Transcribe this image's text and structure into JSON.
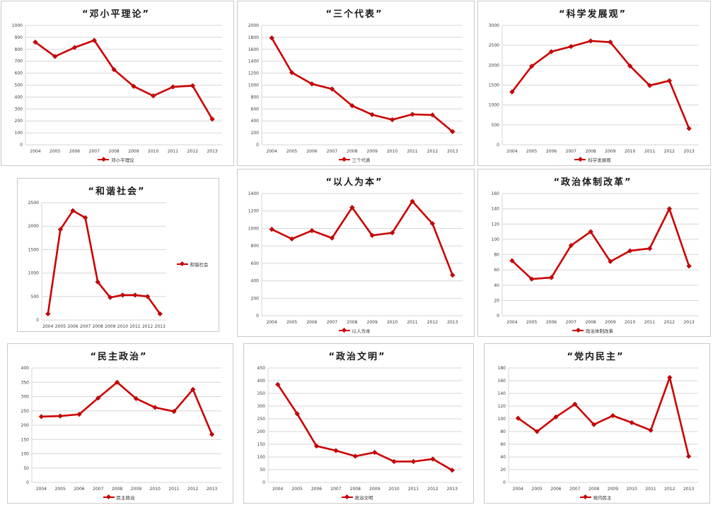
{
  "colors": {
    "line": "#cc0000",
    "grid": "#d6d6d6",
    "axis_text": "#3c3c3c",
    "panel_border": "#c9c9c9"
  },
  "chart_data": [
    {
      "type": "line",
      "title": "“邓小平理论”",
      "legend": "邓小平理论",
      "categories": [
        "2004",
        "2005",
        "2006",
        "2007",
        "2008",
        "2009",
        "2010",
        "2011",
        "2012",
        "2013"
      ],
      "values": [
        860,
        740,
        815,
        875,
        630,
        490,
        410,
        485,
        495,
        215
      ],
      "ylim": [
        0,
        1000
      ],
      "ystep": 100,
      "grid": true,
      "legend_position": "bottom"
    },
    {
      "type": "line",
      "title": "“三个代表”",
      "legend": "三个代表",
      "categories": [
        "2004",
        "2005",
        "2006",
        "2007",
        "2008",
        "2009",
        "2010",
        "2011",
        "2012",
        "2013"
      ],
      "values": [
        1790,
        1210,
        1020,
        935,
        655,
        505,
        420,
        510,
        500,
        220
      ],
      "ylim": [
        0,
        2000
      ],
      "ystep": 200,
      "grid": true,
      "legend_position": "bottom"
    },
    {
      "type": "line",
      "title": "“科学发展观”",
      "legend": "科学发展观",
      "categories": [
        "2004",
        "2005",
        "2006",
        "2007",
        "2008",
        "2009",
        "2010",
        "2011",
        "2012",
        "2013"
      ],
      "values": [
        1330,
        1975,
        2340,
        2470,
        2610,
        2580,
        1980,
        1490,
        1610,
        410
      ],
      "ylim": [
        0,
        3000
      ],
      "ystep": 500,
      "grid": true,
      "legend_position": "bottom"
    },
    {
      "type": "line",
      "title": "“和谐社会”",
      "legend": "和谐社会",
      "categories": [
        "2004",
        "2005",
        "2006",
        "2007",
        "2008",
        "2009",
        "2010",
        "2011",
        "2012",
        "2013"
      ],
      "values": [
        130,
        1930,
        2330,
        2180,
        810,
        480,
        530,
        530,
        500,
        130
      ],
      "ylim": [
        0,
        2500
      ],
      "ystep": 500,
      "grid": true,
      "legend_position": "right"
    },
    {
      "type": "line",
      "title": "“以人为本”",
      "legend": "以人为本",
      "categories": [
        "2004",
        "2005",
        "2006",
        "2007",
        "2008",
        "2009",
        "2010",
        "2011",
        "2012",
        "2013"
      ],
      "values": [
        990,
        880,
        975,
        890,
        1240,
        920,
        950,
        1310,
        1055,
        465
      ],
      "ylim": [
        0,
        1400
      ],
      "ystep": 200,
      "grid": true,
      "legend_position": "bottom"
    },
    {
      "type": "line",
      "title": "“政治体制改革”",
      "legend": "政治体制改革",
      "categories": [
        "2004",
        "2005",
        "2006",
        "2007",
        "2008",
        "2009",
        "2010",
        "2011",
        "2012",
        "2013"
      ],
      "values": [
        72,
        48,
        50,
        92,
        110,
        71,
        85,
        88,
        140,
        65
      ],
      "ylim": [
        0,
        160
      ],
      "ystep": 20,
      "grid": true,
      "legend_position": "bottom"
    },
    {
      "type": "line",
      "title": "“民主政治”",
      "legend": "民主政治",
      "categories": [
        "2004",
        "2005",
        "2006",
        "2007",
        "2008",
        "2009",
        "2010",
        "2011",
        "2012",
        "2013"
      ],
      "values": [
        230,
        232,
        238,
        295,
        350,
        293,
        262,
        248,
        325,
        168
      ],
      "ylim": [
        0,
        400
      ],
      "ystep": 50,
      "grid": true,
      "legend_position": "bottom"
    },
    {
      "type": "line",
      "title": "“政治文明”",
      "legend": "政治文明",
      "categories": [
        "2004",
        "2005",
        "2006",
        "2007",
        "2008",
        "2009",
        "2010",
        "2011",
        "2012",
        "2013"
      ],
      "values": [
        385,
        270,
        143,
        125,
        103,
        118,
        82,
        82,
        92,
        48
      ],
      "ylim": [
        0,
        450
      ],
      "ystep": 50,
      "grid": true,
      "legend_position": "bottom"
    },
    {
      "type": "line",
      "title": "“党内民主”",
      "legend": "党内民主",
      "categories": [
        "2004",
        "2005",
        "2006",
        "2007",
        "2008",
        "2009",
        "2010",
        "2011",
        "2012",
        "2013"
      ],
      "values": [
        101,
        80,
        103,
        123,
        91,
        105,
        94,
        82,
        165,
        41
      ],
      "ylim": [
        0,
        180
      ],
      "ystep": 20,
      "grid": true,
      "legend_position": "bottom"
    }
  ]
}
